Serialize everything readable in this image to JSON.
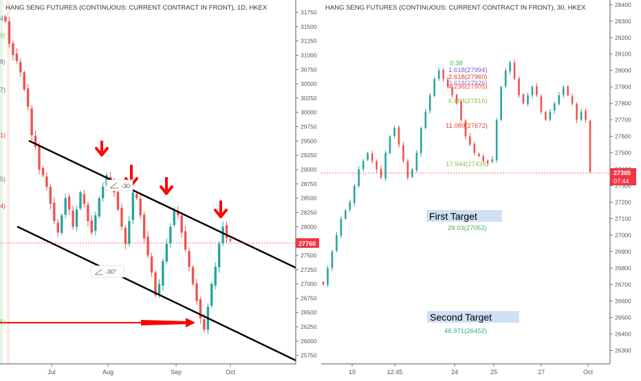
{
  "colors": {
    "up": "#26a69a",
    "down": "#ef5350",
    "channel": "#000000",
    "arrow": "#ff0000",
    "price_tag": "#f23645",
    "target_box": "#cfe0f5",
    "axis_text": "#555555"
  },
  "left": {
    "title": "HANG SENG FUTURES (CONTINUOUS: CURRENT CONTRACT IN FRONT), 1D, HKEX",
    "price_tag": "27760",
    "x_ticks": [
      "Jul",
      "Aug",
      "Sep",
      "Oct"
    ],
    "angle_labels": [
      "-30",
      "-30°"
    ],
    "edge_labels": [
      "4)",
      "9)",
      "8)",
      "7)",
      "1)",
      "5)",
      "4)",
      "5)"
    ],
    "icons": [
      "down-arrow-icon",
      "down-arrow-icon",
      "down-arrow-icon",
      "down-arrow-icon",
      "right-arrow-icon",
      "angle-icon"
    ]
  },
  "right": {
    "title": "HANG SENG FUTURES (CONTINUOUS: CURRENT CONTRACT IN FRONT), 30, HKEX",
    "price_tag": "27385",
    "time_tag": "07:44",
    "x_ticks": [
      "19",
      "12:45",
      "24",
      "25",
      "27",
      "Oct"
    ],
    "fib_labels": [
      {
        "text": "0.38",
        "color": "#4caf50"
      },
      {
        "text": "1.618(27994)",
        "color": "#7e57c2"
      },
      {
        "text": "2.618(27960)",
        "color": "#e53935"
      },
      {
        "text": "3.618(27926)",
        "color": "#9575cd"
      },
      {
        "text": "4.236(27905)",
        "color": "#ef5350"
      },
      {
        "text": "6.854(27816)",
        "color": "#8bc34a"
      },
      {
        "text": "11.089(27672)",
        "color": "#e53935"
      },
      {
        "text": "17.944(27439)",
        "color": "#8bc34a"
      }
    ],
    "first_target": "First Target",
    "first_target_value": "29.03(27062)",
    "second_target": "Second Target",
    "second_target_value": "46.971(26452)"
  },
  "chart_data": [
    {
      "type": "candlestick",
      "title": "HANG SENG FUTURES (CONTINUOUS: CURRENT CONTRACT IN FRONT), 1D, HKEX",
      "x_categories": [
        "Jul",
        "Aug",
        "Sep",
        "Oct"
      ],
      "y_ticks": [
        25750,
        26000,
        26250,
        26500,
        26750,
        27000,
        27250,
        27500,
        27750,
        28000,
        28250,
        28500,
        28750,
        29000,
        29250,
        29500,
        29750,
        30000,
        30250,
        30500,
        30750,
        31000,
        31250,
        31500,
        31750
      ],
      "ylim": [
        25650,
        31870
      ],
      "last_price": 27760,
      "annotations": [
        "-30",
        "-30°"
      ],
      "closes": [
        31600,
        31200,
        31000,
        30900,
        30700,
        30400,
        30100,
        29600,
        29400,
        29000,
        28900,
        28700,
        28400,
        28100,
        27900,
        28200,
        28500,
        28300,
        28000,
        28300,
        28600,
        28400,
        28100,
        27900,
        28200,
        28500,
        28700,
        28900,
        28800,
        28600,
        28300,
        28000,
        27700,
        28100,
        28600,
        28500,
        28200,
        27800,
        27500,
        27200,
        26800,
        27000,
        27400,
        27700,
        28000,
        28300,
        28200,
        27900,
        27600,
        27300,
        27000,
        26700,
        26400,
        26200,
        26600,
        27000,
        27300,
        27700,
        28000,
        27800,
        27760
      ]
    },
    {
      "type": "candlestick",
      "title": "HANG SENG FUTURES (CONTINUOUS: CURRENT CONTRACT IN FRONT), 30, HKEX",
      "x_categories": [
        "19",
        "12:45",
        "24",
        "25",
        "27",
        "Oct"
      ],
      "y_ticks": [
        26300,
        26400,
        26500,
        26600,
        26700,
        26800,
        26900,
        27000,
        27100,
        27200,
        27300,
        27400,
        27500,
        27600,
        27700,
        27800,
        27900,
        28000,
        28100,
        28200,
        28300,
        28400
      ],
      "ylim": [
        26235,
        28420
      ],
      "last_price": 27385,
      "closes": [
        26700,
        26800,
        26900,
        27000,
        27100,
        27150,
        27200,
        27300,
        27400,
        27450,
        27500,
        27450,
        27400,
        27350,
        27500,
        27600,
        27650,
        27550,
        27450,
        27350,
        27400,
        27500,
        27650,
        27750,
        27850,
        27950,
        28000,
        27950,
        27900,
        27850,
        27800,
        27700,
        27600,
        27550,
        27500,
        27480,
        27450,
        27440,
        27460,
        27700,
        27900,
        28000,
        28050,
        27950,
        27850,
        27800,
        27850,
        27900,
        27850,
        27750,
        27700,
        27750,
        27800,
        27850,
        27900,
        27850,
        27800,
        27700,
        27750,
        27700,
        27385
      ]
    }
  ]
}
